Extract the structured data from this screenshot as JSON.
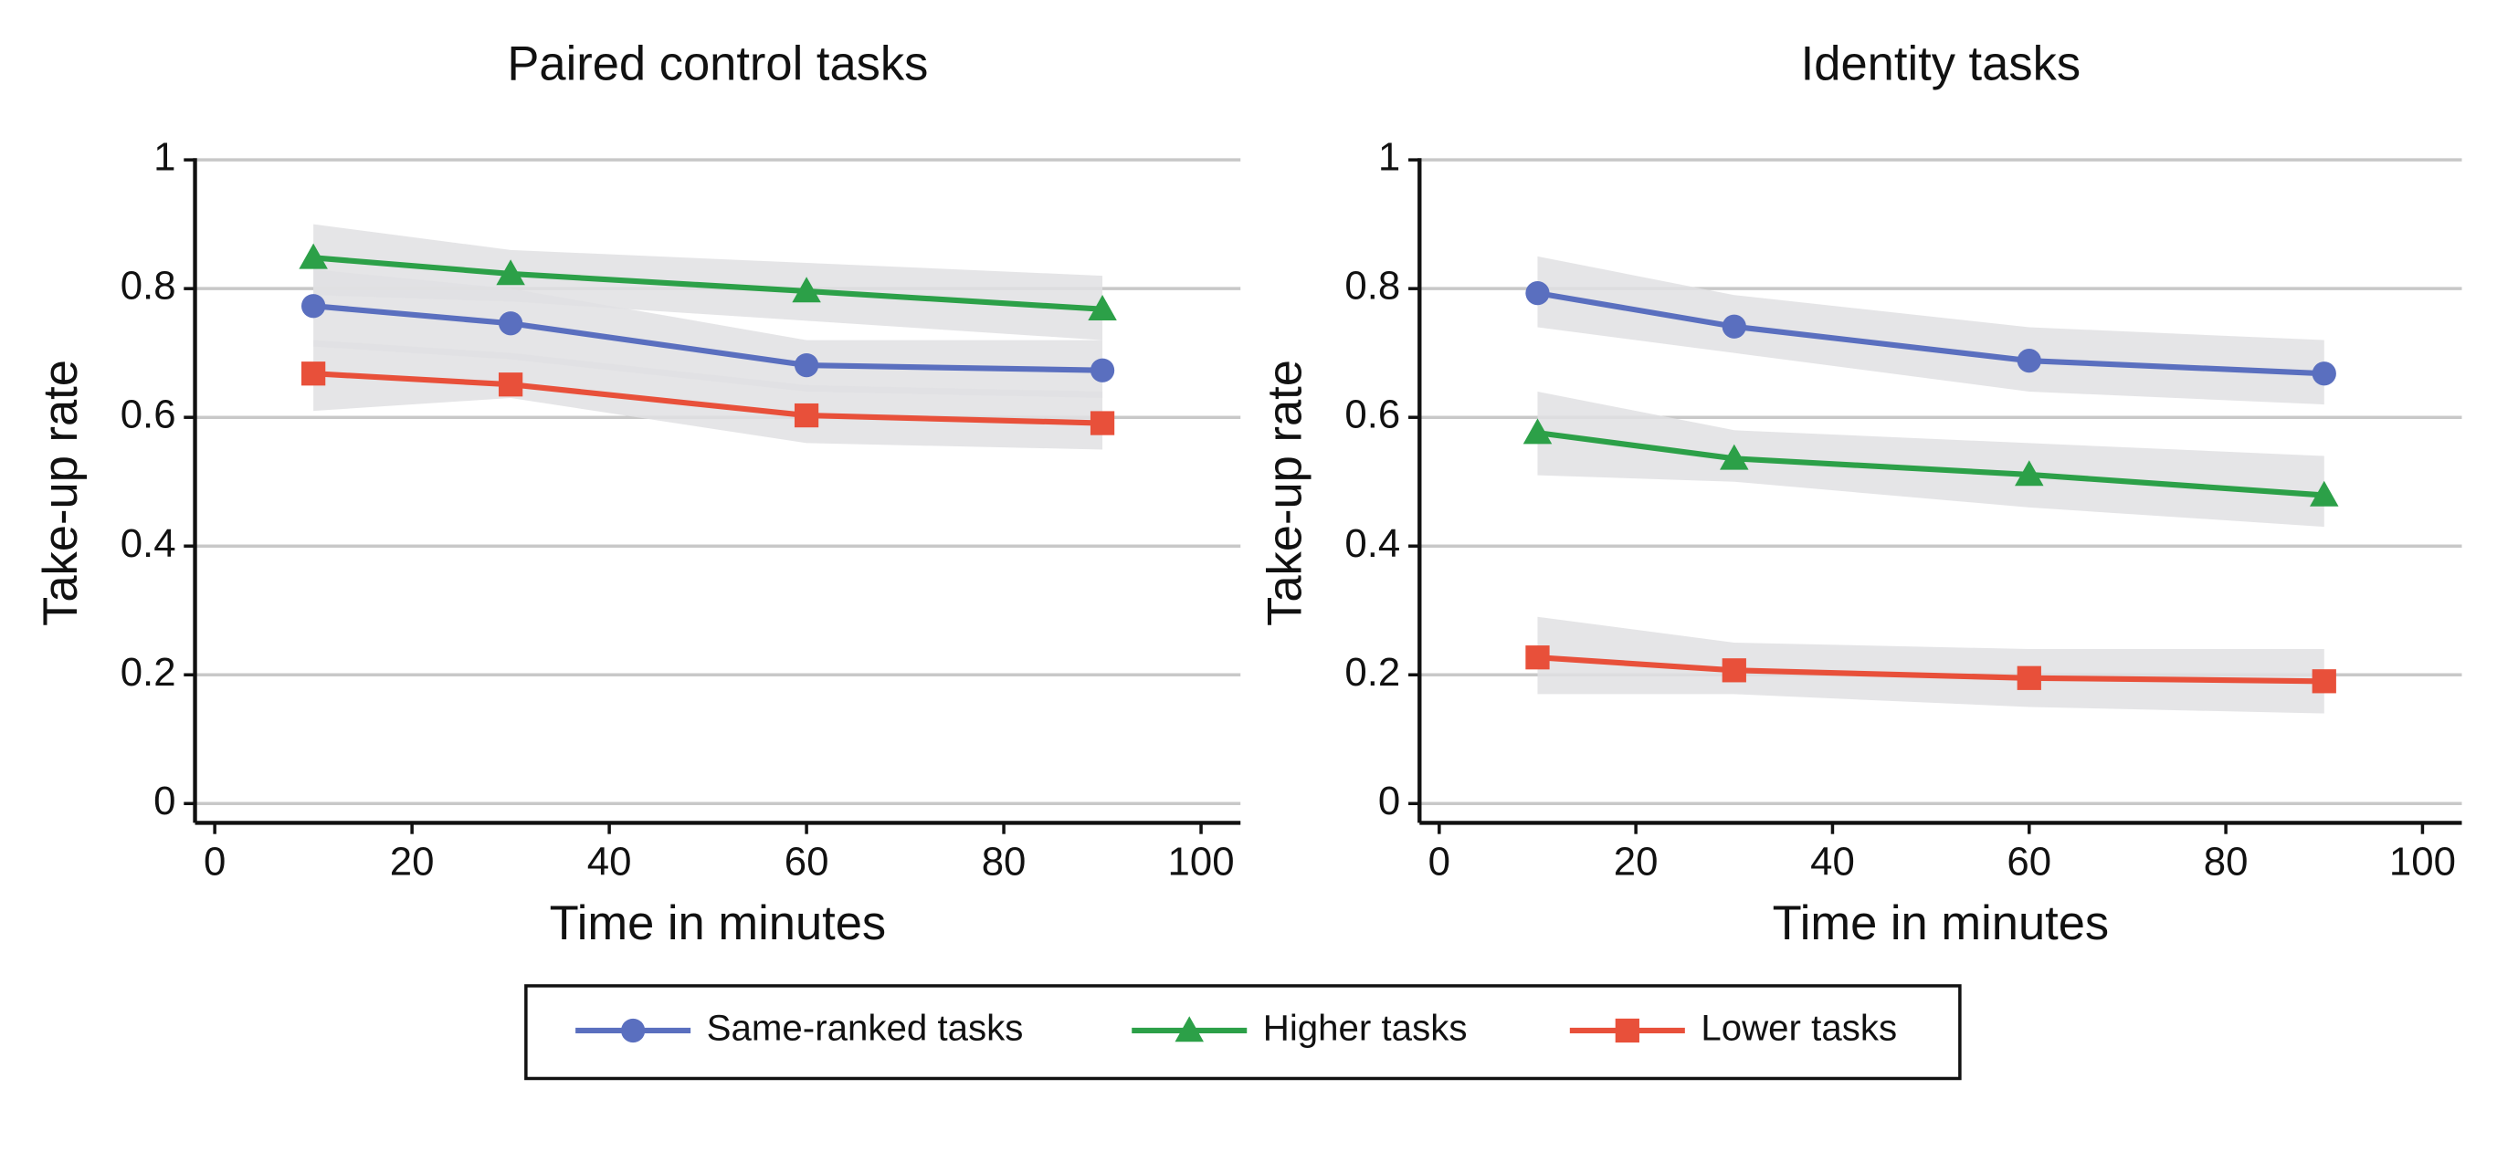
{
  "chart_data": [
    {
      "type": "line",
      "title": "Paired control tasks",
      "xlabel": "Time in minutes",
      "ylabel": "Take-up rate",
      "x": [
        10,
        30,
        60,
        90
      ],
      "xlim": [
        -2,
        104
      ],
      "ylim": [
        -0.03,
        1.02
      ],
      "xticks": [
        0,
        20,
        40,
        60,
        80,
        100
      ],
      "yticks": [
        0,
        0.2,
        0.4,
        0.6,
        0.8,
        1
      ],
      "grid": true,
      "band_color": "#e0e1e3",
      "series": [
        {
          "name": "Same-ranked tasks",
          "color": "#5a6fbf",
          "marker": "circle",
          "values": [
            0.773,
            0.746,
            0.681,
            0.673
          ],
          "upper": [
            0.83,
            0.8,
            0.72,
            0.72
          ],
          "lower": [
            0.71,
            0.69,
            0.64,
            0.63
          ]
        },
        {
          "name": "Higher tasks",
          "color": "#2ca048",
          "marker": "triangle",
          "values": [
            0.848,
            0.823,
            0.796,
            0.768
          ],
          "upper": [
            0.9,
            0.86,
            0.84,
            0.82
          ],
          "lower": [
            0.79,
            0.78,
            0.75,
            0.72
          ]
        },
        {
          "name": "Lower tasks",
          "color": "#e8503a",
          "marker": "square",
          "values": [
            0.668,
            0.651,
            0.603,
            0.591
          ],
          "upper": [
            0.72,
            0.7,
            0.65,
            0.64
          ],
          "lower": [
            0.61,
            0.63,
            0.56,
            0.55
          ]
        }
      ]
    },
    {
      "type": "line",
      "title": "Identity tasks",
      "xlabel": "Time in minutes",
      "ylabel": "Take-up rate",
      "x": [
        10,
        30,
        60,
        90
      ],
      "xlim": [
        -2,
        104
      ],
      "ylim": [
        -0.03,
        1.02
      ],
      "xticks": [
        0,
        20,
        40,
        60,
        80,
        100
      ],
      "yticks": [
        0,
        0.2,
        0.4,
        0.6,
        0.8,
        1
      ],
      "grid": true,
      "band_color": "#e0e1e3",
      "series": [
        {
          "name": "Same-ranked tasks",
          "color": "#5a6fbf",
          "marker": "circle",
          "values": [
            0.793,
            0.741,
            0.688,
            0.668
          ],
          "upper": [
            0.85,
            0.79,
            0.74,
            0.72
          ],
          "lower": [
            0.74,
            0.7,
            0.64,
            0.62
          ]
        },
        {
          "name": "Higher tasks",
          "color": "#2ca048",
          "marker": "triangle",
          "values": [
            0.576,
            0.536,
            0.511,
            0.479
          ],
          "upper": [
            0.64,
            0.58,
            0.56,
            0.54
          ],
          "lower": [
            0.51,
            0.5,
            0.46,
            0.43
          ]
        },
        {
          "name": "Lower tasks",
          "color": "#e8503a",
          "marker": "square",
          "values": [
            0.227,
            0.207,
            0.195,
            0.19
          ],
          "upper": [
            0.29,
            0.25,
            0.24,
            0.24
          ],
          "lower": [
            0.17,
            0.17,
            0.15,
            0.14
          ]
        }
      ]
    }
  ]
}
